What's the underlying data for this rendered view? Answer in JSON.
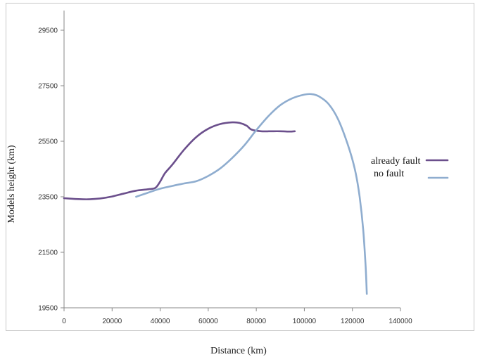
{
  "chart_data": {
    "type": "line",
    "xlabel": "Distance (km)",
    "ylabel": "Models height (km)",
    "xlim": [
      0,
      140000
    ],
    "ylim": [
      19500,
      30000
    ],
    "x_ticks": [
      "0",
      "20000",
      "40000",
      "60000",
      "80000",
      "100000",
      "120000",
      "140000"
    ],
    "y_ticks": [
      "19500",
      "21500",
      "23500",
      "25500",
      "27500",
      "29500"
    ],
    "grid": false,
    "legend_position": "right",
    "series": [
      {
        "name": "already fault",
        "color": "#6b4f8c",
        "x": [
          0,
          5000,
          10000,
          15000,
          20000,
          25000,
          30000,
          35000,
          38000,
          40000,
          42000,
          45000,
          50000,
          55000,
          60000,
          65000,
          70000,
          73000,
          76000,
          78000,
          82000,
          86000,
          90000,
          94000,
          96000
        ],
        "y": [
          23450,
          23420,
          23410,
          23440,
          23510,
          23620,
          23720,
          23770,
          23820,
          24050,
          24350,
          24650,
          25200,
          25650,
          25950,
          26120,
          26180,
          26160,
          26060,
          25920,
          25860,
          25860,
          25860,
          25850,
          25860
        ]
      },
      {
        "name": "no fault",
        "color": "#8fadcf",
        "x": [
          30000,
          35000,
          40000,
          45000,
          50000,
          55000,
          60000,
          65000,
          70000,
          75000,
          80000,
          85000,
          90000,
          95000,
          100000,
          103000,
          106000,
          110000,
          114000,
          118000,
          121000,
          123000,
          124500,
          125500,
          126000
        ],
        "y": [
          23500,
          23650,
          23790,
          23890,
          23980,
          24060,
          24250,
          24520,
          24900,
          25350,
          25900,
          26400,
          26800,
          27050,
          27180,
          27200,
          27120,
          26850,
          26300,
          25400,
          24500,
          23500,
          22300,
          21000,
          20000
        ]
      }
    ]
  }
}
